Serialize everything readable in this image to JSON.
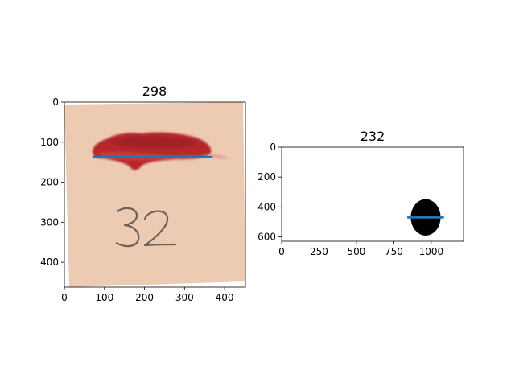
{
  "figure": {
    "panels": [
      {
        "title": "298",
        "xlim": [
          0,
          452
        ],
        "ylim": [
          462,
          0
        ],
        "xticks": [
          0,
          100,
          200,
          300,
          400
        ],
        "yticks": [
          0,
          100,
          200,
          300,
          400
        ],
        "image": {
          "paper_color": "#ecc8ae",
          "stain_color": "#b6282c",
          "handwritten_label": "32",
          "paper_corners": [
            [
              0,
              5
            ],
            [
              445,
              0
            ],
            [
              452,
              445
            ],
            [
              12,
              462
            ]
          ]
        },
        "line": {
          "x": [
            70,
            370
          ],
          "y": [
            137,
            137
          ],
          "color": "#1f77b4"
        }
      },
      {
        "title": "232",
        "xlim": [
          0,
          1216
        ],
        "ylim": [
          630,
          0
        ],
        "xticks": [
          0,
          250,
          500,
          750,
          1000
        ],
        "yticks": [
          0,
          200,
          400,
          600
        ],
        "image": {
          "background": "#ffffff",
          "blob_color": "#000000",
          "blob_center": [
            963,
            470
          ],
          "blob_radii": [
            100,
            122
          ]
        },
        "line": {
          "x": [
            840,
            1085
          ],
          "y": [
            470,
            470
          ],
          "color": "#1f77b4"
        }
      }
    ]
  }
}
